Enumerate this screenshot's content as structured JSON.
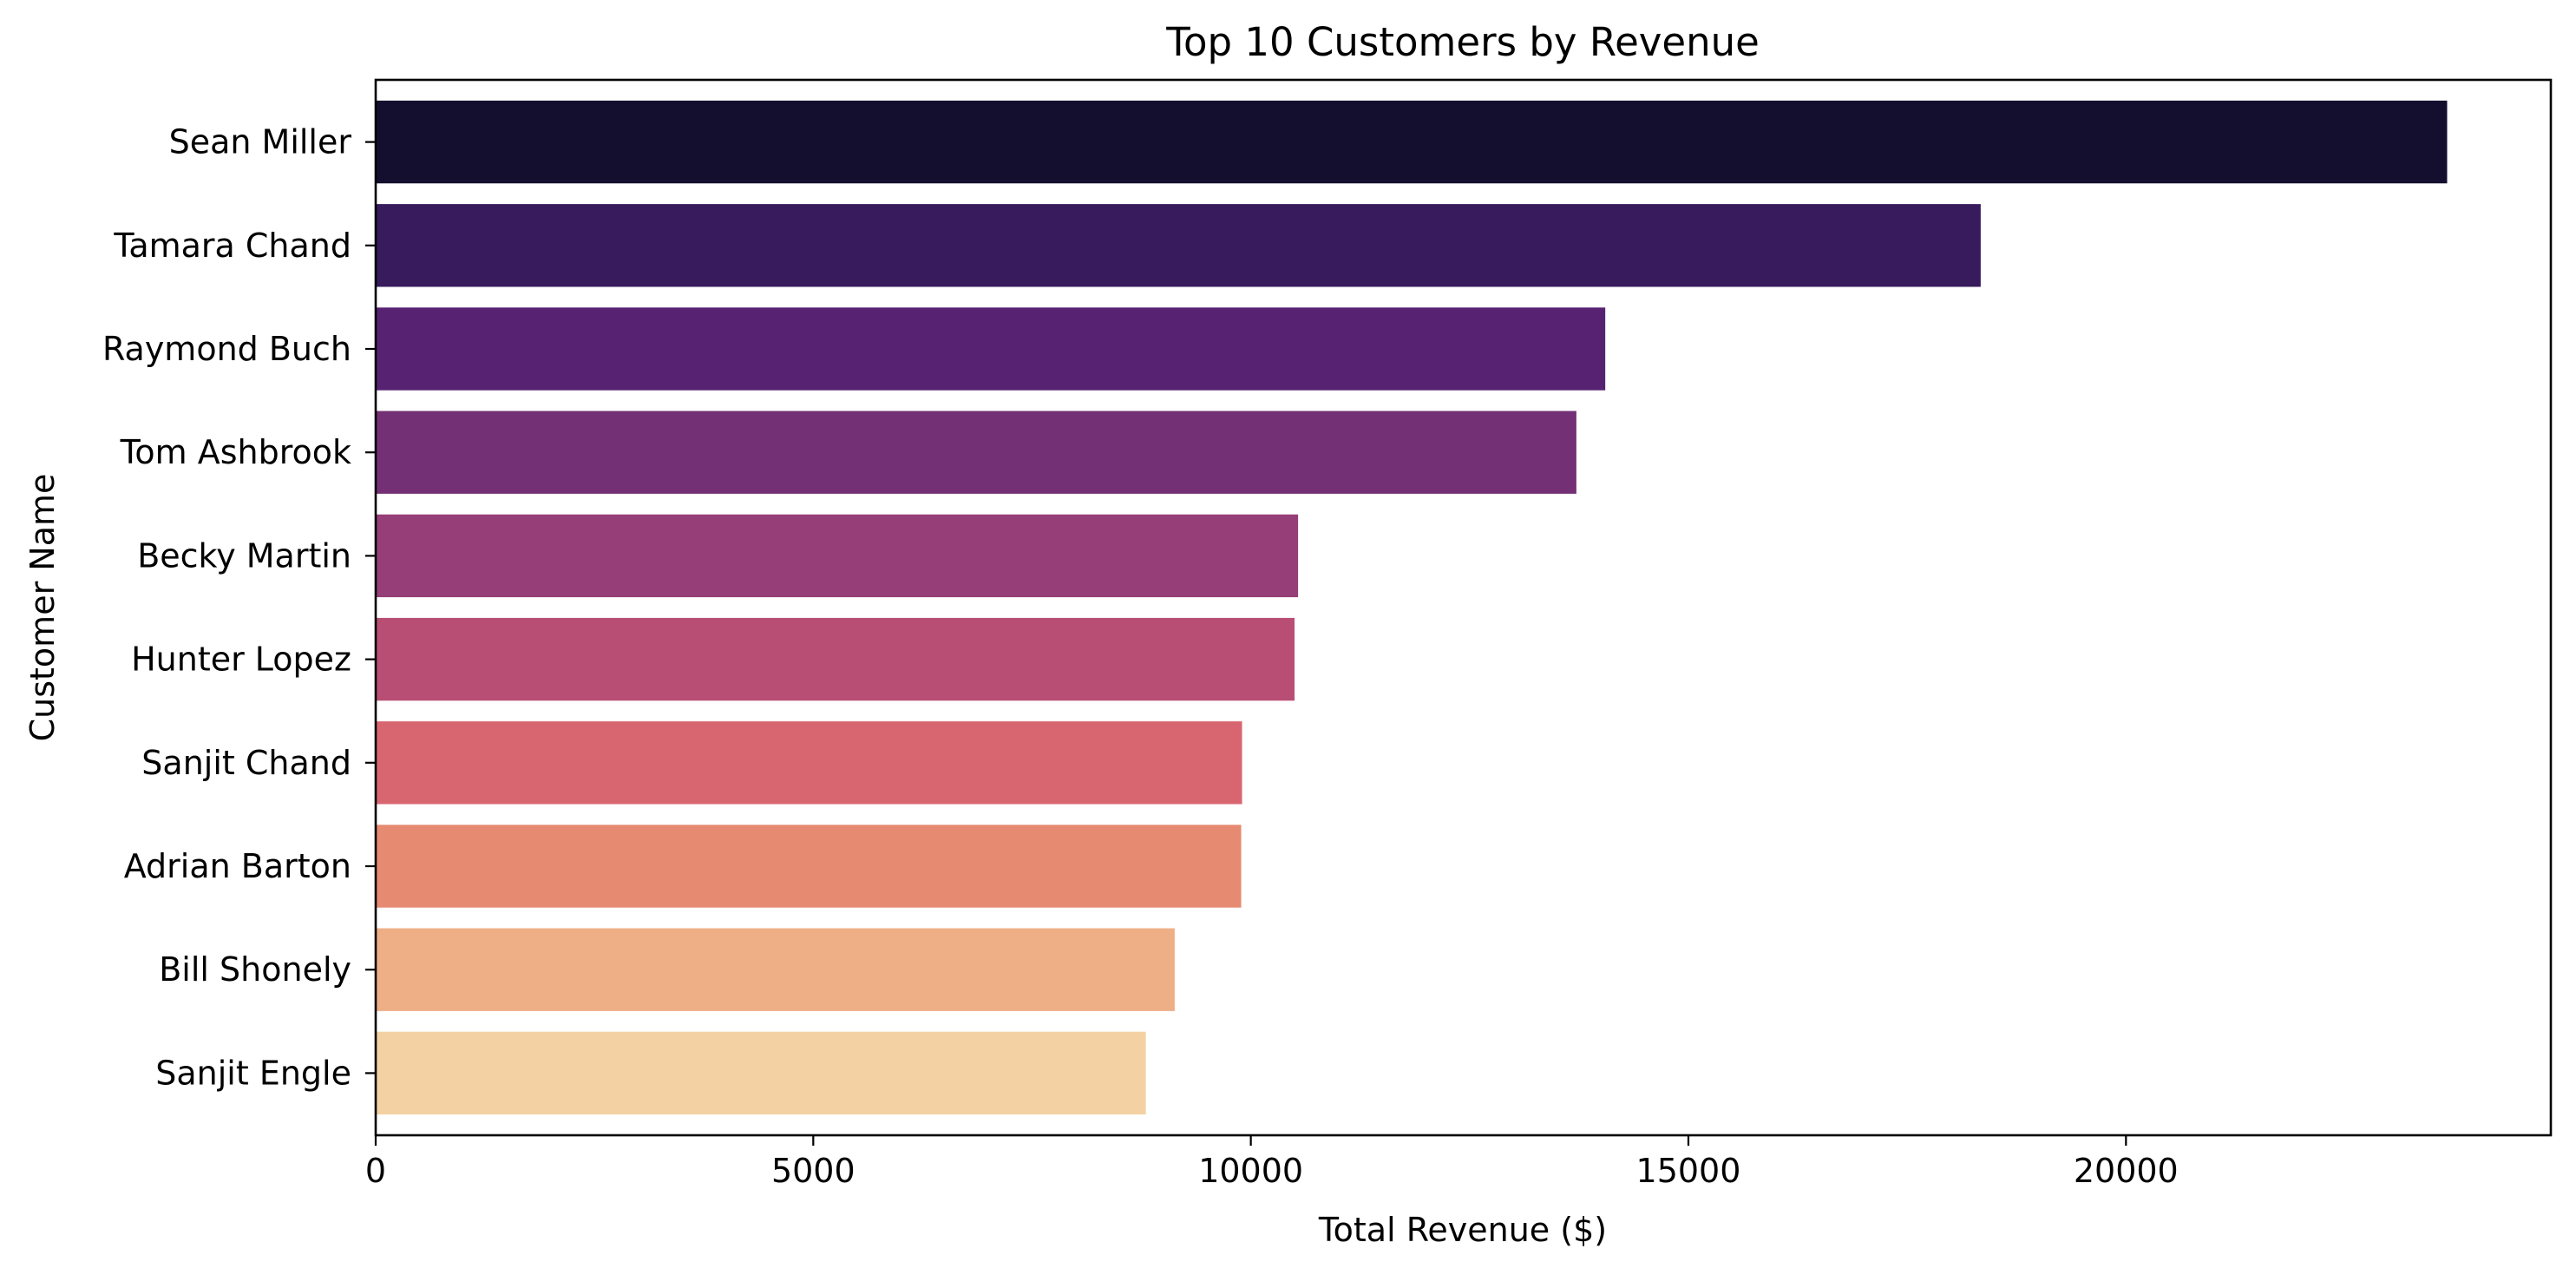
{
  "chart_data": {
    "type": "bar",
    "orientation": "horizontal",
    "title": "Top 10 Customers by Revenue",
    "xlabel": "Total Revenue ($)",
    "ylabel": "Customer Name",
    "categories": [
      "Sean Miller",
      "Tamara Chand",
      "Raymond Buch",
      "Tom Ashbrook",
      "Becky Martin",
      "Hunter Lopez",
      "Sanjit Chand",
      "Adrian Barton",
      "Bill Shonely",
      "Sanjit Engle"
    ],
    "values": [
      23670,
      18340,
      14050,
      13720,
      10540,
      10500,
      9900,
      9890,
      9130,
      8800
    ],
    "colors": [
      "#140f2e",
      "#371b5c",
      "#572271",
      "#743075",
      "#953e77",
      "#b94e74",
      "#d86670",
      "#e68a71",
      "#eeaf86",
      "#f3d1a2"
    ],
    "xlim": [
      0,
      24855
    ],
    "xticks": [
      0,
      5000,
      10000,
      15000,
      20000
    ],
    "xtick_labels": [
      "0",
      "5000",
      "10000",
      "15000",
      "20000"
    ],
    "grid": false,
    "legend": "none"
  }
}
